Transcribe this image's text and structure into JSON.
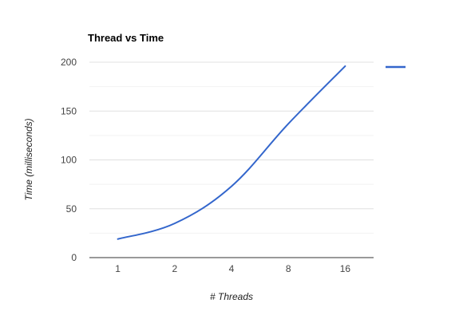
{
  "chart_data": {
    "type": "line",
    "title": "Thread vs Time",
    "xlabel": "# Threads",
    "ylabel": "Time (milliseconds)",
    "categories": [
      "1",
      "2",
      "4",
      "8",
      "16"
    ],
    "series": [
      {
        "name": "",
        "values": [
          19,
          35,
          73,
          137,
          196
        ],
        "color": "#3366cc"
      }
    ],
    "ylim": [
      0,
      200
    ],
    "yticks": [
      0,
      50,
      100,
      150,
      200
    ],
    "grid": true,
    "legend": "right",
    "colors": {
      "line": "#3366cc",
      "grid": "#e0e0e0",
      "baseline": "#333333",
      "text": "#222222",
      "tick_text": "#444444"
    }
  }
}
